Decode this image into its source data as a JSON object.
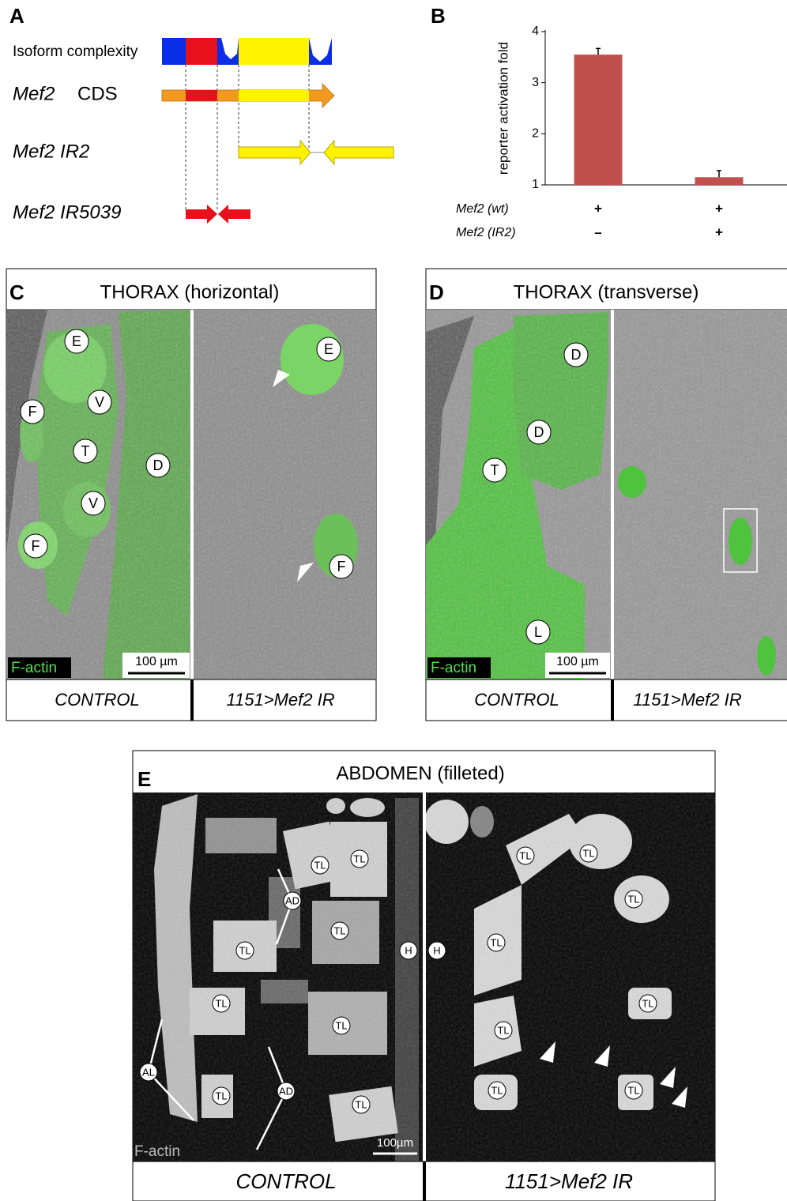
{
  "panel_a": {
    "letter": "A",
    "isoform": "Isoform complexity",
    "cds_gene": "Mef2",
    "cds": "CDS",
    "ir2": "Mef2 IR2",
    "ir5039": "Mef2 IR5039"
  },
  "chart_data": {
    "type": "bar",
    "letter": "B",
    "y_label": "reporter activation fold",
    "categories": [
      null,
      null
    ],
    "values": [
      3.55,
      1.15
    ],
    "errors": [
      0.12,
      0.13
    ],
    "color": "#c0504d",
    "ylim": [
      1,
      4
    ],
    "yticks": [
      1,
      2,
      3,
      4
    ],
    "conditions": [
      {
        "name": "Mef2 (wt)",
        "marks": [
          "+",
          "+"
        ]
      },
      {
        "name": "Mef2 (IR2)",
        "marks": [
          "–",
          "+"
        ]
      }
    ]
  },
  "panel_c": {
    "letter": "C",
    "title": "THORAX (horizontal)",
    "stain": "F-actin",
    "scale": "100 µm",
    "captions": [
      "CONTROL",
      "1151>Mef2 IR"
    ],
    "labels": [
      "E",
      "F",
      "V",
      "T",
      "D",
      "V",
      "F",
      "E",
      "F"
    ]
  },
  "panel_d": {
    "letter": "D",
    "title": "THORAX (transverse)",
    "stain": "F-actin",
    "scale": "100 µm",
    "captions": [
      "CONTROL",
      "1151>Mef2 IR"
    ],
    "labels": [
      "D",
      "D",
      "T",
      "L"
    ]
  },
  "panel_e": {
    "letter": "E",
    "title": "ABDOMEN (filleted)",
    "stain": "F-actin",
    "scale": "100µm",
    "captions": [
      "CONTROL",
      "1151>Mef2 IR"
    ],
    "labels": [
      "TL",
      "TL",
      "AD",
      "TL",
      "TL",
      "H",
      "TL",
      "TL",
      "AL",
      "TL",
      "AD",
      "TL",
      "TL",
      "TL",
      "TL",
      "H",
      "TL",
      "TL",
      "TL",
      "TL",
      "TL"
    ]
  }
}
